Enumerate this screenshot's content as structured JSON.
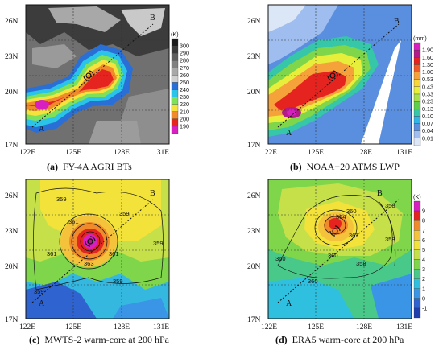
{
  "panels": [
    {
      "id": "a",
      "caption_letter": "(a)",
      "caption_text": "FY-4A AGRI BTs",
      "x_ticks": [
        "122E",
        "125E",
        "128E",
        "131E"
      ],
      "y_ticks": [
        "26N",
        "23N",
        "20N",
        "17N"
      ],
      "point_a": "A",
      "point_b": "B",
      "colorbar": {
        "unit": "(K)",
        "levels": [
          "300",
          "290",
          "280",
          "270",
          "260",
          "250",
          "240",
          "230",
          "220",
          "210",
          "200",
          "190"
        ],
        "colors": [
          "#1a1a1a",
          "#3a3a3a",
          "#5e5e5e",
          "#808080",
          "#a8a8a8",
          "#cfcfcf",
          "#2a6fd6",
          "#29c4e8",
          "#7fe05a",
          "#f5e23c",
          "#f08a2a",
          "#e5231f",
          "#d81fbf"
        ]
      }
    },
    {
      "id": "b",
      "caption_letter": "(b)",
      "caption_text": "NOAA−20 ATMS LWP",
      "x_ticks": [
        "122E",
        "125E",
        "128E",
        "131E"
      ],
      "y_ticks": [
        "26N",
        "23N",
        "20N",
        "17N"
      ],
      "point_a": "A",
      "point_b": "B",
      "colorbar": {
        "unit": "(mm)",
        "levels": [
          "1.90",
          "1.60",
          "1.30",
          "1.00",
          "0.53",
          "0.43",
          "0.33",
          "0.23",
          "0.13",
          "0.10",
          "0.07",
          "0.04",
          "0.01"
        ],
        "colors": [
          "#d81fbf",
          "#b51a8a",
          "#e5231f",
          "#f05a28",
          "#f6a23a",
          "#f7d63a",
          "#e8ef3a",
          "#a8e04a",
          "#5fcf4a",
          "#35c7a8",
          "#2fb6e6",
          "#5a8fe0",
          "#9fbdee",
          "#dbe6f7"
        ]
      }
    },
    {
      "id": "c",
      "caption_letter": "(c)",
      "caption_text": "MWTS-2 warm-core at 200 hPa",
      "x_ticks": [
        "122E",
        "125E",
        "128E",
        "131E"
      ],
      "y_ticks": [
        "26N",
        "23N",
        "20N",
        "17N"
      ],
      "point_a": "A",
      "point_b": "B",
      "contour_labels": [
        "359",
        "361",
        "359",
        "359",
        "361",
        "363",
        "359",
        "359",
        "361"
      ]
    },
    {
      "id": "d",
      "caption_letter": "(d)",
      "caption_text": "ERA5 warm-core at 200 hPa",
      "x_ticks": [
        "122E",
        "125E",
        "128E",
        "131E"
      ],
      "y_ticks": [
        "26N",
        "23N",
        "20N",
        "17N"
      ],
      "point_a": "A",
      "point_b": "B",
      "contour_labels": [
        "360",
        "364",
        "362",
        "360",
        "360",
        "358",
        "358",
        "360",
        "358"
      ],
      "colorbar": {
        "unit": "(K)",
        "levels": [
          "9",
          "8",
          "7",
          "6",
          "5",
          "4",
          "3",
          "2",
          "1",
          "0",
          "-1"
        ],
        "colors": [
          "#d81fbf",
          "#e5231f",
          "#f08a2a",
          "#f5c23c",
          "#f2e23a",
          "#c6e04a",
          "#7fd64a",
          "#48c98a",
          "#2fc0e0",
          "#3a95e6",
          "#2f63d0",
          "#1f3fb0"
        ]
      }
    }
  ]
}
